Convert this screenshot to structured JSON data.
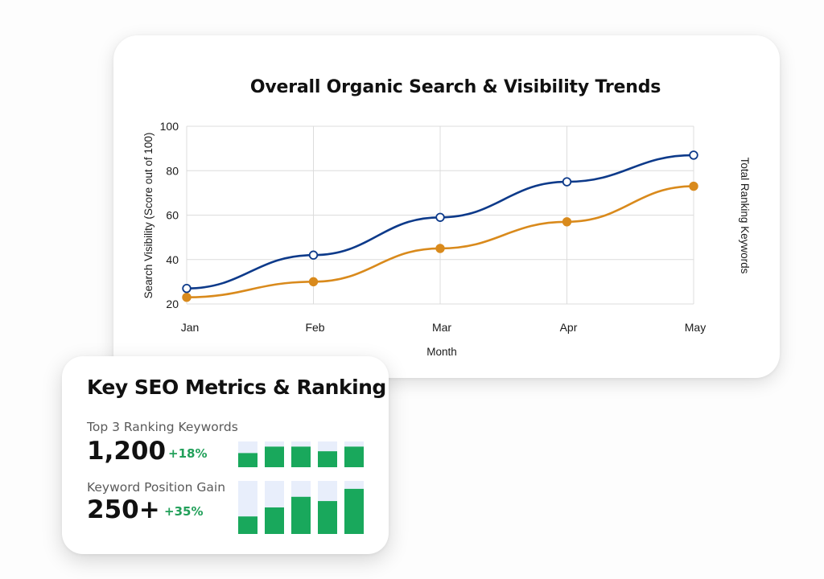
{
  "chart_card": {
    "title": "Overall Organic Search & Visibility Trends"
  },
  "chart_data": {
    "type": "line",
    "title": "Overall Organic Search & Visibility Trends",
    "xlabel": "Month",
    "ylabel": "Search Visibility (Score out of 100)",
    "y2label": "Total Ranking Keywords",
    "categories": [
      "Jan",
      "Feb",
      "Mar",
      "Apr",
      "May"
    ],
    "ylim": [
      20,
      100
    ],
    "yticks": [
      20,
      40,
      60,
      80,
      100
    ],
    "grid": true,
    "series": [
      {
        "values": [
          27,
          42,
          59,
          75,
          87
        ],
        "color": "#0d3a8a",
        "marker": "hollow"
      },
      {
        "values": [
          23,
          30,
          45,
          57,
          73
        ],
        "color": "#d98a1c",
        "marker": "filled"
      }
    ]
  },
  "metrics_card": {
    "title": "Key SEO Metrics & Ranking",
    "metrics": [
      {
        "label": "Top 3 Ranking Keywords",
        "value": "1,200",
        "change": "+18%",
        "bar_levels": [
          0.55,
          0.8,
          0.8,
          0.62,
          0.8
        ]
      },
      {
        "label": "Keyword Position Gain",
        "value": "250+",
        "change": "+35%",
        "bar_levels": [
          0.33,
          0.5,
          0.7,
          0.62,
          0.85
        ]
      }
    ],
    "bar_fill_color": "#19a85c",
    "bar_track_color": "#e8eefb"
  }
}
